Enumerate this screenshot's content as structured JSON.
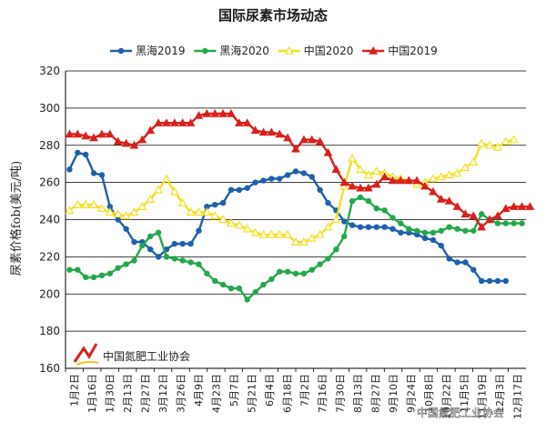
{
  "chart_data": {
    "type": "line",
    "title": "国际尿素市场动态",
    "ylabel": "尿素价格fob(美元/吨)",
    "ylim": [
      160,
      320
    ],
    "yticks": [
      160,
      180,
      200,
      220,
      240,
      260,
      280,
      300,
      320
    ],
    "grid": true,
    "legend_position": "top",
    "x_tick_labels": [
      "1月2日",
      "1月16日",
      "1月30日",
      "2月13日",
      "2月27日",
      "3月12日",
      "3月26日",
      "4月9日",
      "4月23日",
      "5月7日",
      "5月21日",
      "6月4日",
      "6月18日",
      "7月2日",
      "7月16日",
      "7月30日",
      "8月13日",
      "8月27日",
      "9月10日",
      "9月24日",
      "10月8日",
      "10月22日",
      "11月5日",
      "11月19日",
      "12月3日",
      "12月17日"
    ],
    "series": [
      {
        "name": "黑海2019",
        "color": "#1f5fae",
        "marker": "circle",
        "values": [
          267,
          276,
          275,
          265,
          264,
          247,
          240,
          235,
          228,
          228,
          224,
          220,
          224,
          227,
          227,
          227,
          234,
          247,
          248,
          249,
          256,
          256,
          257,
          260,
          261,
          262,
          262,
          264,
          266,
          265,
          263,
          256,
          249,
          245,
          239,
          237,
          236,
          236,
          236,
          236,
          235,
          233,
          233,
          232,
          230,
          229,
          226,
          219,
          217,
          217,
          213,
          207,
          207,
          207,
          207
        ]
      },
      {
        "name": "黑海2020",
        "color": "#22a84a",
        "marker": "circle",
        "values": [
          213,
          213,
          209,
          209,
          210,
          211,
          214,
          216,
          218,
          226,
          231,
          233,
          220,
          219,
          218,
          217,
          216,
          211,
          207,
          205,
          203,
          203,
          197,
          201,
          205,
          208,
          212,
          212,
          211,
          211,
          213,
          216,
          219,
          224,
          231,
          250,
          252,
          250,
          246,
          245,
          241,
          238,
          235,
          234,
          233,
          233,
          234,
          236,
          235,
          234,
          234,
          243,
          240,
          238,
          238,
          238,
          238
        ]
      },
      {
        "name": "中国2020",
        "color": "#f3df1e",
        "marker": "triangle-open",
        "values": [
          245,
          248,
          248,
          248,
          246,
          244,
          243,
          242,
          244,
          247,
          251,
          256,
          262,
          255,
          249,
          244,
          244,
          244,
          242,
          240,
          238,
          237,
          235,
          233,
          232,
          232,
          232,
          232,
          228,
          228,
          230,
          232,
          236,
          240,
          258,
          273,
          267,
          264,
          266,
          265,
          263,
          262,
          261,
          259,
          260,
          262,
          263,
          264,
          265,
          268,
          271,
          281,
          280,
          279,
          282,
          283
        ]
      },
      {
        "name": "中国2019",
        "color": "#d9201c",
        "marker": "triangle",
        "values": [
          286,
          286,
          285,
          284,
          286,
          286,
          282,
          281,
          280,
          283,
          288,
          292,
          292,
          292,
          292,
          292,
          296,
          297,
          297,
          297,
          297,
          292,
          292,
          288,
          287,
          287,
          286,
          284,
          278,
          283,
          283,
          282,
          276,
          267,
          260,
          258,
          257,
          257,
          259,
          263,
          261,
          261,
          261,
          261,
          258,
          255,
          251,
          250,
          247,
          243,
          242,
          236,
          240,
          242,
          246,
          247,
          247,
          247
        ]
      }
    ]
  },
  "logo": {
    "text": "中国氮肥工业协会"
  },
  "watermark": {
    "text": "中国氮肥工业协会"
  }
}
